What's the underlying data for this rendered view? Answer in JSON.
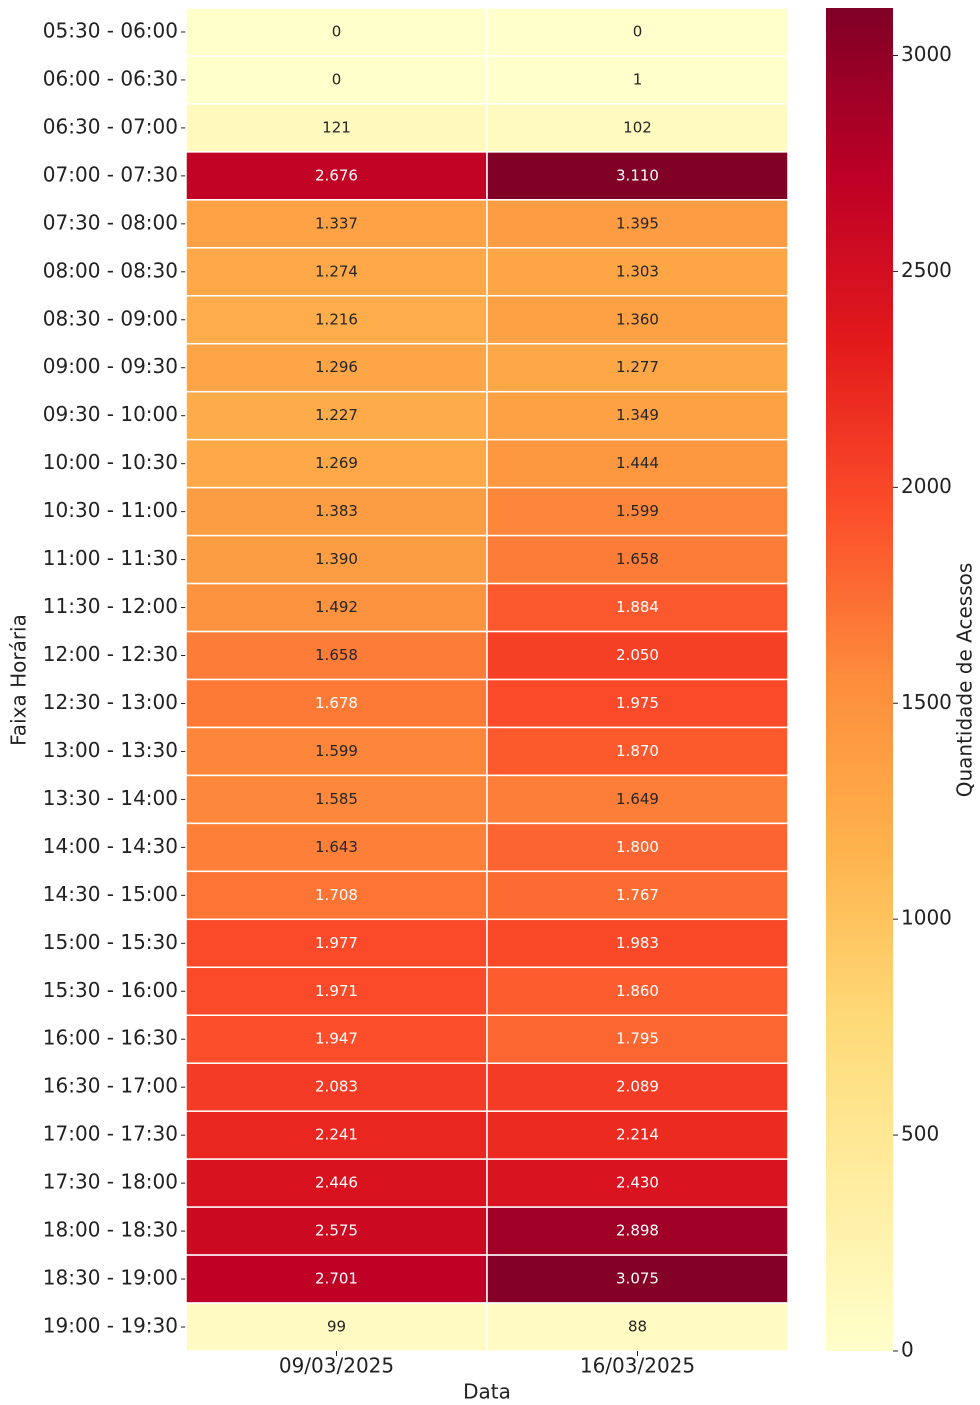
{
  "chart_data": {
    "type": "heatmap",
    "x_label": "Data",
    "y_label": "Faixa Horária",
    "colorbar_label": "Quantidade de Acessos",
    "x": [
      "09/03/2025",
      "16/03/2025"
    ],
    "y": [
      "05:30 - 06:00",
      "06:00 - 06:30",
      "06:30 - 07:00",
      "07:00 - 07:30",
      "07:30 - 08:00",
      "08:00 - 08:30",
      "08:30 - 09:00",
      "09:00 - 09:30",
      "09:30 - 10:00",
      "10:00 - 10:30",
      "10:30 - 11:00",
      "11:00 - 11:30",
      "11:30 - 12:00",
      "12:00 - 12:30",
      "12:30 - 13:00",
      "13:00 - 13:30",
      "13:30 - 14:00",
      "14:00 - 14:30",
      "14:30 - 15:00",
      "15:00 - 15:30",
      "15:30 - 16:00",
      "16:00 - 16:30",
      "16:30 - 17:00",
      "17:00 - 17:30",
      "17:30 - 18:00",
      "18:00 - 18:30",
      "18:30 - 19:00",
      "19:00 - 19:30"
    ],
    "values": [
      [
        0,
        0
      ],
      [
        0,
        1
      ],
      [
        121,
        102
      ],
      [
        2676,
        3110
      ],
      [
        1337,
        1395
      ],
      [
        1274,
        1303
      ],
      [
        1216,
        1360
      ],
      [
        1296,
        1277
      ],
      [
        1227,
        1349
      ],
      [
        1269,
        1444
      ],
      [
        1383,
        1599
      ],
      [
        1390,
        1658
      ],
      [
        1492,
        1884
      ],
      [
        1658,
        2050
      ],
      [
        1678,
        1975
      ],
      [
        1599,
        1870
      ],
      [
        1585,
        1649
      ],
      [
        1643,
        1800
      ],
      [
        1708,
        1767
      ],
      [
        1977,
        1983
      ],
      [
        1971,
        1860
      ],
      [
        1947,
        1795
      ],
      [
        2083,
        2089
      ],
      [
        2241,
        2214
      ],
      [
        2446,
        2430
      ],
      [
        2575,
        2898
      ],
      [
        2701,
        3075
      ],
      [
        99,
        88
      ]
    ],
    "value_labels": [
      [
        "0",
        "0"
      ],
      [
        "0",
        "1"
      ],
      [
        "121",
        "102"
      ],
      [
        "2.676",
        "3.110"
      ],
      [
        "1.337",
        "1.395"
      ],
      [
        "1.274",
        "1.303"
      ],
      [
        "1.216",
        "1.360"
      ],
      [
        "1.296",
        "1.277"
      ],
      [
        "1.227",
        "1.349"
      ],
      [
        "1.269",
        "1.444"
      ],
      [
        "1.383",
        "1.599"
      ],
      [
        "1.390",
        "1.658"
      ],
      [
        "1.492",
        "1.884"
      ],
      [
        "1.658",
        "2.050"
      ],
      [
        "1.678",
        "1.975"
      ],
      [
        "1.599",
        "1.870"
      ],
      [
        "1.585",
        "1.649"
      ],
      [
        "1.643",
        "1.800"
      ],
      [
        "1.708",
        "1.767"
      ],
      [
        "1.977",
        "1.983"
      ],
      [
        "1.971",
        "1.860"
      ],
      [
        "1.947",
        "1.795"
      ],
      [
        "2.083",
        "2.089"
      ],
      [
        "2.241",
        "2.214"
      ],
      [
        "2.446",
        "2.430"
      ],
      [
        "2.575",
        "2.898"
      ],
      [
        "2.701",
        "3.075"
      ],
      [
        "99",
        "88"
      ]
    ],
    "colormap": "YlOrRd",
    "clim": [
      0,
      3110
    ],
    "cticks": [
      0,
      500,
      1000,
      1500,
      2000,
      2500,
      3000
    ]
  }
}
